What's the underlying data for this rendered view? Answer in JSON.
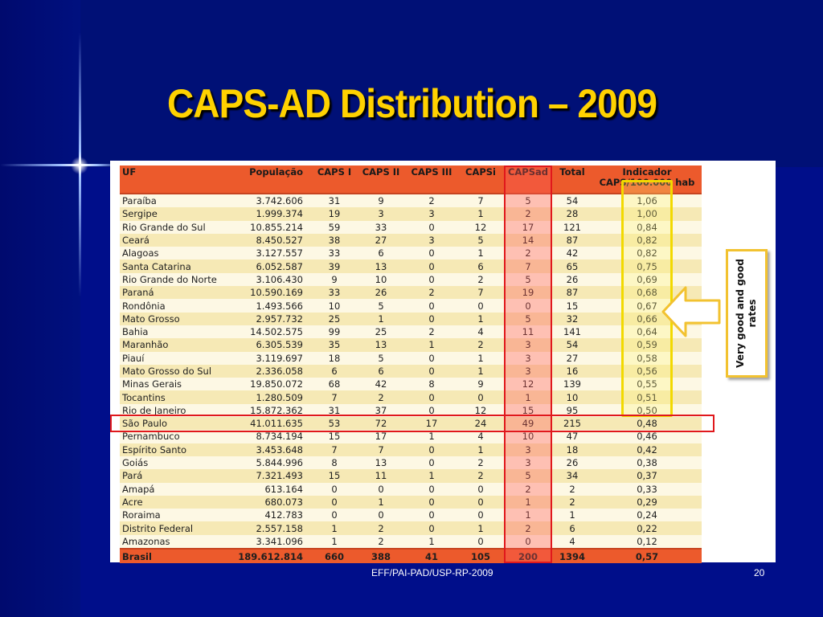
{
  "slide": {
    "title": "CAPS-AD Distribution – 2009",
    "footer": "EFF/PAI-PAD/USP-RP-2009",
    "page_number": "20",
    "callout": "Very good and good rates"
  },
  "colors": {
    "background": "#000e8a",
    "title": "#ffd200",
    "header_fill": "#ec5a2c",
    "row_light": "#fdf8e4",
    "row_dark": "#f6e9b5",
    "highlight_red": "#e0181c",
    "highlight_yellow": "#f2d900"
  },
  "table": {
    "headers": [
      "UF",
      "População",
      "CAPS I",
      "CAPS II",
      "CAPS III",
      "CAPSi",
      "CAPSad",
      "Total",
      "Indicador CAPS/100.000 hab"
    ],
    "rows": [
      [
        "Paraíba",
        "3.742.606",
        "31",
        "9",
        "2",
        "7",
        "5",
        "54",
        "1,06"
      ],
      [
        "Sergipe",
        "1.999.374",
        "19",
        "3",
        "3",
        "1",
        "2",
        "28",
        "1,00"
      ],
      [
        "Rio Grande do Sul",
        "10.855.214",
        "59",
        "33",
        "0",
        "12",
        "17",
        "121",
        "0,84"
      ],
      [
        "Ceará",
        "8.450.527",
        "38",
        "27",
        "3",
        "5",
        "14",
        "87",
        "0,82"
      ],
      [
        "Alagoas",
        "3.127.557",
        "33",
        "6",
        "0",
        "1",
        "2",
        "42",
        "0,82"
      ],
      [
        "Santa Catarina",
        "6.052.587",
        "39",
        "13",
        "0",
        "6",
        "7",
        "65",
        "0,75"
      ],
      [
        "Rio Grande do Norte",
        "3.106.430",
        "9",
        "10",
        "0",
        "2",
        "5",
        "26",
        "0,69"
      ],
      [
        "Paraná",
        "10.590.169",
        "33",
        "26",
        "2",
        "7",
        "19",
        "87",
        "0,68"
      ],
      [
        "Rondônia",
        "1.493.566",
        "10",
        "5",
        "0",
        "0",
        "0",
        "15",
        "0,67"
      ],
      [
        "Mato Grosso",
        "2.957.732",
        "25",
        "1",
        "0",
        "1",
        "5",
        "32",
        "0,66"
      ],
      [
        "Bahia",
        "14.502.575",
        "99",
        "25",
        "2",
        "4",
        "11",
        "141",
        "0,64"
      ],
      [
        "Maranhão",
        "6.305.539",
        "35",
        "13",
        "1",
        "2",
        "3",
        "54",
        "0,59"
      ],
      [
        "Piauí",
        "3.119.697",
        "18",
        "5",
        "0",
        "1",
        "3",
        "27",
        "0,58"
      ],
      [
        "Mato Grosso do Sul",
        "2.336.058",
        "6",
        "6",
        "0",
        "1",
        "3",
        "16",
        "0,56"
      ],
      [
        "Minas Gerais",
        "19.850.072",
        "68",
        "42",
        "8",
        "9",
        "12",
        "139",
        "0,55"
      ],
      [
        "Tocantins",
        "1.280.509",
        "7",
        "2",
        "0",
        "0",
        "1",
        "10",
        "0,51"
      ],
      [
        "Rio de Janeiro",
        "15.872.362",
        "31",
        "37",
        "0",
        "12",
        "15",
        "95",
        "0,50"
      ],
      [
        "São Paulo",
        "41.011.635",
        "53",
        "72",
        "17",
        "24",
        "49",
        "215",
        "0,48"
      ],
      [
        "Pernambuco",
        "8.734.194",
        "15",
        "17",
        "1",
        "4",
        "10",
        "47",
        "0,46"
      ],
      [
        "Espírito Santo",
        "3.453.648",
        "7",
        "7",
        "0",
        "1",
        "3",
        "18",
        "0,42"
      ],
      [
        "Goiás",
        "5.844.996",
        "8",
        "13",
        "0",
        "2",
        "3",
        "26",
        "0,38"
      ],
      [
        "Pará",
        "7.321.493",
        "15",
        "11",
        "1",
        "2",
        "5",
        "34",
        "0,37"
      ],
      [
        "Amapá",
        "613.164",
        "0",
        "0",
        "0",
        "0",
        "2",
        "2",
        "0,33"
      ],
      [
        "Acre",
        "680.073",
        "0",
        "1",
        "0",
        "0",
        "1",
        "2",
        "0,29"
      ],
      [
        "Roraima",
        "412.783",
        "0",
        "0",
        "0",
        "0",
        "1",
        "1",
        "0,24"
      ],
      [
        "Distrito Federal",
        "2.557.158",
        "1",
        "2",
        "0",
        "1",
        "2",
        "6",
        "0,22"
      ],
      [
        "Amazonas",
        "3.341.096",
        "1",
        "2",
        "1",
        "0",
        "0",
        "4",
        "0,12"
      ]
    ],
    "total": [
      "Brasil",
      "189.612.814",
      "660",
      "388",
      "41",
      "105",
      "200",
      "1394",
      "0,57"
    ],
    "highlighted_row": "São Paulo",
    "highlighted_column": "CAPSad",
    "highlighted_indicator_through": "Rio de Janeiro"
  }
}
